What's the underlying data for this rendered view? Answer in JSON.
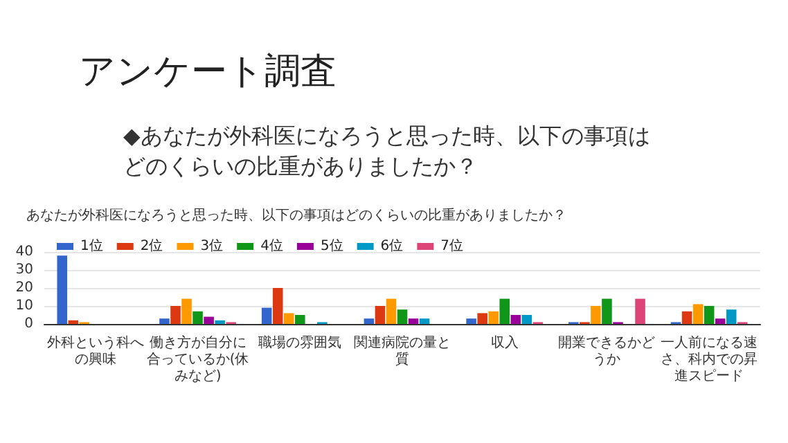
{
  "chart_data": {
    "type": "bar",
    "title": "アンケート調査",
    "subtitle": "◆あなたが外科医になろうと思った時、以下の事項はどのくらいの比重がありましたか？",
    "annotations": [
      "あなたが外科医になろうと思った時、以下の事項はどのくらいの比重がありましたか？"
    ],
    "categories": [
      "外科という科への興味",
      "働き方が自分に合っているか(休みなど)",
      "職場の雰囲気",
      "関連病院の量と質",
      "収入",
      "開業できるかどうか",
      "一人前になる速さ、科内での昇進スピード"
    ],
    "series": [
      {
        "name": "1位",
        "color": "#3366cc",
        "values": [
          38,
          3,
          9,
          3,
          3,
          1,
          1
        ]
      },
      {
        "name": "2位",
        "color": "#dc3912",
        "values": [
          2,
          10,
          20,
          10,
          6,
          1,
          7
        ]
      },
      {
        "name": "3位",
        "color": "#ff9900",
        "values": [
          1,
          14,
          6,
          14,
          7,
          10,
          11
        ]
      },
      {
        "name": "4位",
        "color": "#109618",
        "values": [
          0,
          7,
          5,
          8,
          14,
          14,
          10
        ]
      },
      {
        "name": "5位",
        "color": "#990099",
        "values": [
          0,
          4,
          0,
          3,
          5,
          1,
          3
        ]
      },
      {
        "name": "6位",
        "color": "#0099c6",
        "values": [
          0,
          2,
          1,
          3,
          5,
          0,
          8
        ]
      },
      {
        "name": "7位",
        "color": "#dd4477",
        "values": [
          0,
          1,
          0,
          0,
          1,
          14,
          1
        ]
      }
    ],
    "ylim": [
      0,
      40
    ],
    "yticks": [
      0,
      10,
      20,
      30,
      40
    ],
    "grid": "y",
    "legend": "top left"
  }
}
